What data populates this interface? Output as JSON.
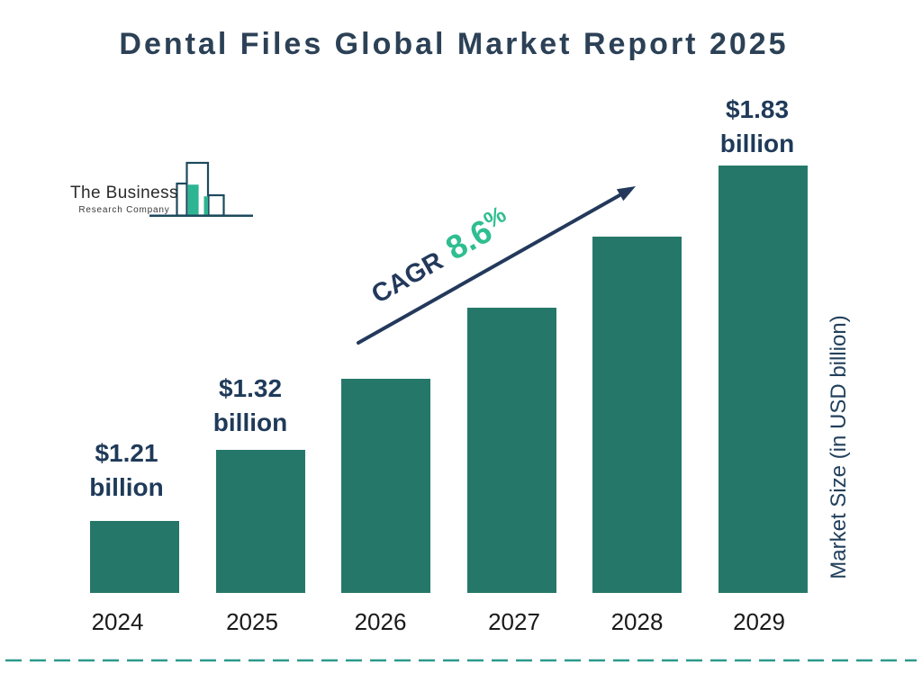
{
  "title": "Dental Files Global Market Report 2025",
  "logo": {
    "line1": "The Business",
    "line2": "Research Company"
  },
  "chart_data": {
    "type": "bar",
    "title": "Dental Files Global Market Report 2025",
    "categories": [
      "2024",
      "2025",
      "2026",
      "2027",
      "2028",
      "2029"
    ],
    "values": [
      1.21,
      1.32,
      1.43,
      1.56,
      1.69,
      1.83
    ],
    "values_note": "only 2024, 2025 and 2029 are labeled on the chart; middle values estimated from 8.6% CAGR; bar heights are stylized (linear steps)",
    "value_labels": [
      {
        "line1": "$1.21",
        "line2": "billion"
      },
      {
        "line1": "$1.32",
        "line2": "billion"
      },
      null,
      null,
      null,
      {
        "line1": "$1.83",
        "line2": "billion"
      }
    ],
    "cagr_label": "CAGR",
    "cagr_value": "8.6",
    "cagr_unit": "%",
    "ylabel": "Market Size (in USD billion)",
    "xlabel": "",
    "legend": false,
    "grid": false,
    "bar_color": "#257869",
    "accent_green": "#2fbe90",
    "navy": "#1f3a59"
  }
}
